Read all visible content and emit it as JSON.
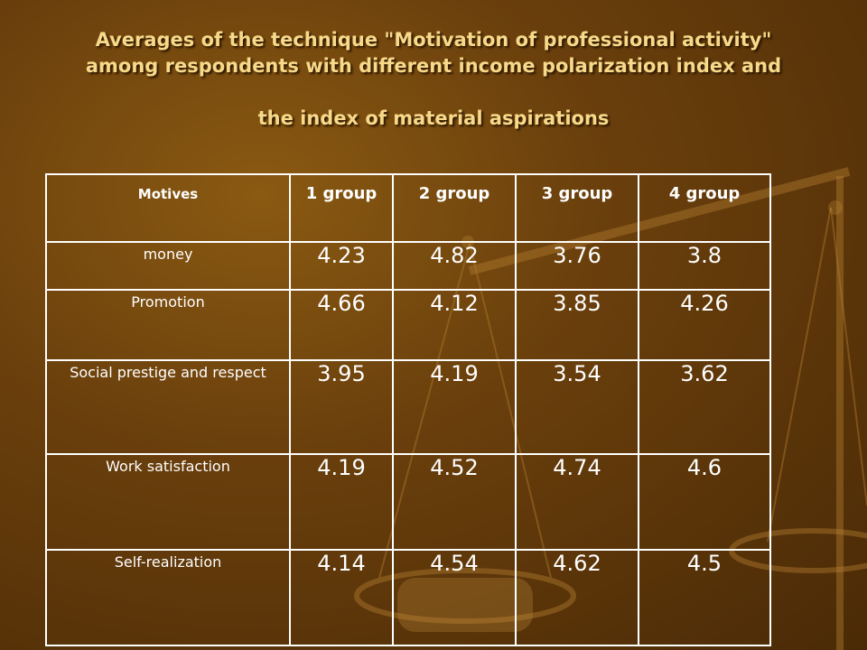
{
  "title": {
    "line1": "Averages of the technique \"Motivation of professional activity\"",
    "line2": "among respondents with different income polarization index and",
    "line3": "the index of material aspirations"
  },
  "table": {
    "headers": [
      "Motives",
      "1 group",
      "2 group",
      "3 group",
      "4 group"
    ],
    "rows": [
      {
        "motive": "money",
        "values": [
          "4.23",
          "4.82",
          "3.76",
          "3.8"
        ]
      },
      {
        "motive": "Promotion",
        "values": [
          "4.66",
          "4.12",
          "3.85",
          "4.26"
        ]
      },
      {
        "motive": "Social prestige and respect",
        "values": [
          "3.95",
          "4.19",
          "3.54",
          "3.62"
        ]
      },
      {
        "motive": "Work satisfaction",
        "values": [
          "4.19",
          "4.52",
          "4.74",
          "4.6"
        ]
      },
      {
        "motive": "Self-realization",
        "values": [
          "4.14",
          "4.54",
          "4.62",
          "4.5"
        ]
      }
    ]
  },
  "colors": {
    "highlight": "#ffff00",
    "text": "#ffffff",
    "title": "#f7d98a"
  }
}
